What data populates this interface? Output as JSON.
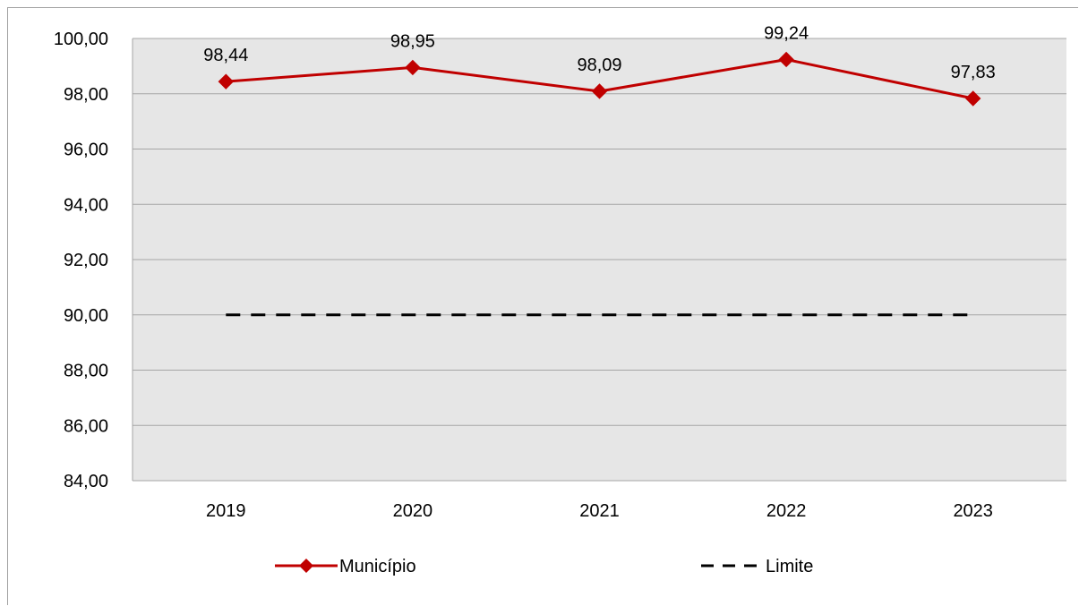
{
  "chart_data": {
    "type": "line",
    "categories": [
      "2019",
      "2020",
      "2021",
      "2022",
      "2023"
    ],
    "ylim": [
      84,
      100
    ],
    "ytick_values": [
      84,
      86,
      88,
      90,
      92,
      94,
      96,
      98,
      100
    ],
    "ytick_labels": [
      "84,00",
      "86,00",
      "88,00",
      "90,00",
      "92,00",
      "94,00",
      "96,00",
      "98,00",
      "100,00"
    ],
    "grid": true,
    "legend_position": "bottom",
    "series": [
      {
        "name": "Município",
        "values": [
          98.44,
          98.95,
          98.09,
          99.24,
          97.83
        ],
        "data_labels": [
          "98,44",
          "98,95",
          "98,09",
          "99,24",
          "97,83"
        ],
        "color": "#c00000",
        "marker": "diamond",
        "line_style": "solid"
      },
      {
        "name": "Limite",
        "values": [
          90,
          90,
          90,
          90,
          90
        ],
        "color": "#000000",
        "line_style": "dashed"
      }
    ],
    "plot_background": "#e6e6e6",
    "gridline_color": "#a6a6a6"
  }
}
